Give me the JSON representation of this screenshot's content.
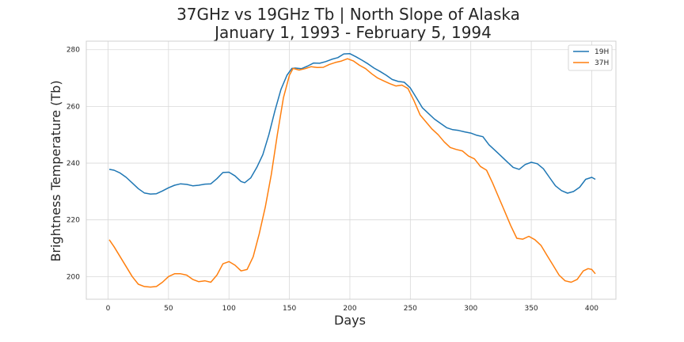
{
  "chart_data": {
    "type": "line",
    "title": "37GHz vs 19GHz Tb | North Slope of Alaska",
    "subtitle": "January 1, 1993 - February 5, 1994",
    "xlabel": "Days",
    "ylabel": "Brightness Temperature (Tb)",
    "xlim": [
      -18,
      420
    ],
    "ylim": [
      192,
      283
    ],
    "xticks": [
      0,
      50,
      100,
      150,
      200,
      250,
      300,
      350,
      400
    ],
    "yticks": [
      200,
      220,
      240,
      260,
      280
    ],
    "grid": true,
    "legend_position": "top-right",
    "series": [
      {
        "name": "19H",
        "color": "#1f77b4",
        "points": [
          [
            1,
            237.8
          ],
          [
            5,
            237.5
          ],
          [
            10,
            236.5
          ],
          [
            15,
            235
          ],
          [
            20,
            233
          ],
          [
            25,
            231
          ],
          [
            30,
            229.5
          ],
          [
            35,
            229.1
          ],
          [
            40,
            229.2
          ],
          [
            45,
            230.2
          ],
          [
            50,
            231.3
          ],
          [
            55,
            232.2
          ],
          [
            60,
            232.7
          ],
          [
            65,
            232.5
          ],
          [
            70,
            232
          ],
          [
            75,
            232.2
          ],
          [
            80,
            232.6
          ],
          [
            85,
            232.7
          ],
          [
            90,
            234.5
          ],
          [
            95,
            236.7
          ],
          [
            100,
            236.8
          ],
          [
            105,
            235.5
          ],
          [
            110,
            233.5
          ],
          [
            113,
            233.1
          ],
          [
            118,
            234.8
          ],
          [
            123,
            238.5
          ],
          [
            128,
            243
          ],
          [
            133,
            250
          ],
          [
            138,
            258.5
          ],
          [
            143,
            266
          ],
          [
            148,
            271
          ],
          [
            152,
            273.4
          ],
          [
            155,
            273.5
          ],
          [
            160,
            273.3
          ],
          [
            165,
            274.2
          ],
          [
            170,
            275.3
          ],
          [
            175,
            275.2
          ],
          [
            180,
            275.8
          ],
          [
            185,
            276.6
          ],
          [
            190,
            277.2
          ],
          [
            195,
            278.5
          ],
          [
            200,
            278.6
          ],
          [
            205,
            277.5
          ],
          [
            210,
            276.3
          ],
          [
            215,
            275
          ],
          [
            220,
            273.5
          ],
          [
            225,
            272.3
          ],
          [
            230,
            271
          ],
          [
            235,
            269.5
          ],
          [
            240,
            268.8
          ],
          [
            245,
            268.5
          ],
          [
            250,
            266.5
          ],
          [
            255,
            263
          ],
          [
            260,
            259.5
          ],
          [
            265,
            257.5
          ],
          [
            270,
            255.5
          ],
          [
            275,
            254
          ],
          [
            280,
            252.5
          ],
          [
            285,
            251.8
          ],
          [
            290,
            251.5
          ],
          [
            295,
            251
          ],
          [
            300,
            250.6
          ],
          [
            305,
            249.8
          ],
          [
            310,
            249.3
          ],
          [
            315,
            246.5
          ],
          [
            320,
            244.5
          ],
          [
            325,
            242.5
          ],
          [
            330,
            240.5
          ],
          [
            335,
            238.5
          ],
          [
            340,
            237.8
          ],
          [
            345,
            239.5
          ],
          [
            350,
            240.3
          ],
          [
            355,
            239.8
          ],
          [
            360,
            238
          ],
          [
            365,
            235
          ],
          [
            370,
            232
          ],
          [
            375,
            230.3
          ],
          [
            380,
            229.4
          ],
          [
            385,
            230
          ],
          [
            390,
            231.5
          ],
          [
            395,
            234.3
          ],
          [
            400,
            235
          ],
          [
            403,
            234.3
          ]
        ]
      },
      {
        "name": "37H",
        "color": "#ff7f0e",
        "points": [
          [
            1,
            213
          ],
          [
            5,
            210.5
          ],
          [
            10,
            207
          ],
          [
            15,
            203.5
          ],
          [
            20,
            200
          ],
          [
            25,
            197.3
          ],
          [
            30,
            196.5
          ],
          [
            35,
            196.3
          ],
          [
            40,
            196.5
          ],
          [
            45,
            198
          ],
          [
            50,
            200
          ],
          [
            55,
            201
          ],
          [
            60,
            201
          ],
          [
            65,
            200.5
          ],
          [
            70,
            199
          ],
          [
            75,
            198.2
          ],
          [
            80,
            198.5
          ],
          [
            85,
            198
          ],
          [
            90,
            200.5
          ],
          [
            95,
            204.5
          ],
          [
            100,
            205.3
          ],
          [
            105,
            204
          ],
          [
            110,
            202
          ],
          [
            115,
            202.5
          ],
          [
            120,
            207
          ],
          [
            125,
            215
          ],
          [
            130,
            224.5
          ],
          [
            135,
            236
          ],
          [
            140,
            250
          ],
          [
            145,
            263
          ],
          [
            150,
            271
          ],
          [
            153,
            273.4
          ],
          [
            158,
            272.8
          ],
          [
            163,
            273.3
          ],
          [
            168,
            274
          ],
          [
            173,
            273.7
          ],
          [
            178,
            273.8
          ],
          [
            183,
            274.8
          ],
          [
            188,
            275.5
          ],
          [
            193,
            276
          ],
          [
            198,
            276.8
          ],
          [
            203,
            276
          ],
          [
            208,
            274.5
          ],
          [
            213,
            273.3
          ],
          [
            218,
            271.5
          ],
          [
            223,
            270
          ],
          [
            228,
            269
          ],
          [
            233,
            268
          ],
          [
            238,
            267.2
          ],
          [
            243,
            267.5
          ],
          [
            248,
            266.3
          ],
          [
            253,
            262
          ],
          [
            258,
            257
          ],
          [
            263,
            254.5
          ],
          [
            268,
            252
          ],
          [
            273,
            250
          ],
          [
            278,
            247.5
          ],
          [
            283,
            245.5
          ],
          [
            288,
            244.8
          ],
          [
            293,
            244.3
          ],
          [
            298,
            242.5
          ],
          [
            303,
            241.5
          ],
          [
            308,
            238.8
          ],
          [
            313,
            237.5
          ],
          [
            318,
            233
          ],
          [
            323,
            228
          ],
          [
            328,
            223
          ],
          [
            333,
            218
          ],
          [
            338,
            213.5
          ],
          [
            343,
            213.2
          ],
          [
            348,
            214.2
          ],
          [
            353,
            213
          ],
          [
            358,
            211
          ],
          [
            363,
            207.5
          ],
          [
            368,
            204
          ],
          [
            373,
            200.5
          ],
          [
            378,
            198.5
          ],
          [
            383,
            198
          ],
          [
            388,
            199
          ],
          [
            393,
            202
          ],
          [
            397,
            202.8
          ],
          [
            400,
            202.5
          ],
          [
            403,
            201
          ]
        ]
      }
    ]
  }
}
